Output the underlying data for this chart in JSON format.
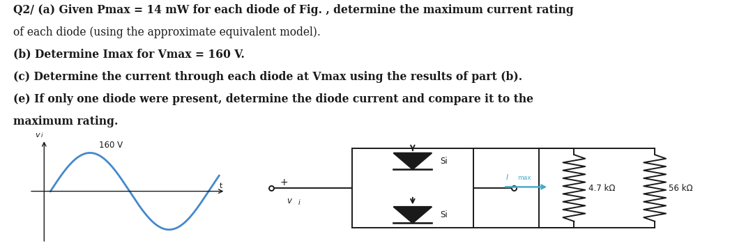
{
  "bg_color": "#c8c8c8",
  "white": "#ffffff",
  "sine_color": "#4488cc",
  "imax_color": "#44aacc",
  "black": "#1a1a1a",
  "text_lines": [
    "Q2/ (a) Given Pmax = 14 mW for each diode of Fig. , determine the maximum current rating",
    "of each diode (using the approximate equivalent model).",
    "(b) Determine Imax for Vmax = 160 V.",
    "(c) Determine the current through each diode at Vmax using the results of part (b).",
    "(e) If only one diode were present, determine the diode current and compare it to the",
    "maximum rating."
  ],
  "text_bold_words": [
    "Q2/",
    "(b)",
    "(c)",
    "(e)"
  ],
  "label_160V": "160 V",
  "label_47k": "4.7 kΩ",
  "label_56k": "56 kΩ",
  "label_Si_top": "Si",
  "label_Si_bot": "Si",
  "label_Imax": "Imax",
  "label_vi_sine": "v",
  "label_t": "t",
  "label_vi_ckt": "v",
  "label_plus": "+",
  "label_vi2": "v"
}
